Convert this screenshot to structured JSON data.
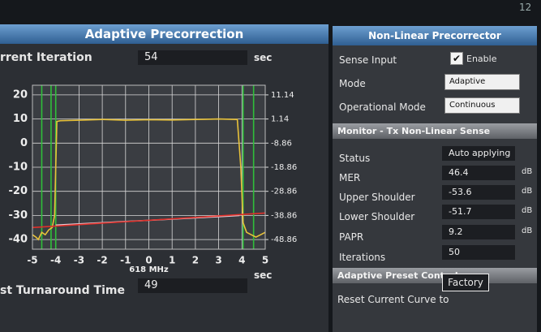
{
  "header": {
    "corner": "12"
  },
  "left_panel": {
    "title": "Adaptive Precorrection",
    "iteration": {
      "label": "rrent Iteration",
      "value": "54",
      "unit": "sec"
    },
    "turnaround": {
      "label": "st Turnaround Time",
      "value": "49",
      "unit": "sec"
    }
  },
  "chart_data": {
    "type": "line",
    "xlabel": "618 MHz",
    "xlim": [
      -5,
      5
    ],
    "xticks": [
      -5,
      -4,
      -3,
      -2,
      -1,
      0,
      1,
      2,
      3,
      4,
      5
    ],
    "ylim": [
      -44,
      24
    ],
    "yticks": [
      20,
      10,
      0,
      -10,
      -20,
      -30,
      -40
    ],
    "y2lim": [
      -52.86,
      15.14
    ],
    "y2ticks": [
      11.14,
      1.14,
      -8.86,
      -18.86,
      -28.86,
      -38.86,
      -48.86
    ],
    "grid": true,
    "series": [
      {
        "color": "#e8c23a",
        "x": [
          -5,
          -4.85,
          -4.75,
          -4.6,
          -4.45,
          -4.3,
          -4.15,
          -4.05,
          -3.95,
          -3.8,
          -3,
          -2,
          -1,
          0,
          1,
          2,
          3,
          3.8,
          3.95,
          4.05,
          4.2,
          4.4,
          4.6,
          4.8,
          5
        ],
        "values": [
          -38,
          -39,
          -40,
          -37,
          -38,
          -36,
          -35,
          -30,
          9,
          9.3,
          9.5,
          9.8,
          9.5,
          9.7,
          9.6,
          9.8,
          10,
          9.8,
          -10,
          -33,
          -37,
          -38,
          -39,
          -38,
          -37
        ]
      },
      {
        "color": "#e9c9d2",
        "x": [
          -4,
          -3,
          -2,
          -1,
          0,
          1,
          2,
          3,
          3.9
        ],
        "values": [
          -34,
          -33.5,
          -33,
          -32.5,
          -32,
          -31.5,
          -31,
          -30.5,
          -30
        ]
      },
      {
        "color": "#e0302a",
        "x": [
          -5,
          5
        ],
        "values": [
          -35,
          -29
        ]
      }
    ],
    "vlines": {
      "color": "#2fbf3a",
      "x": [
        -4.6,
        -4.2,
        -4,
        4.05,
        4.5
      ]
    }
  },
  "right_panel": {
    "title": "Non-Linear Precorrector",
    "settings": [
      {
        "label": "Sense Input",
        "value": "Enable"
      },
      {
        "label": "Mode",
        "value": "Adaptive"
      },
      {
        "label": "Operational Mode",
        "value": "Continuous"
      }
    ],
    "monitor": {
      "title": "Monitor - Tx Non-Linear Sense",
      "rows": [
        {
          "label": "Status",
          "value": "Auto applying"
        },
        {
          "label": "MER",
          "value": "46.4",
          "unit": "dB"
        },
        {
          "label": "Upper Shoulder",
          "value": "-53.6",
          "unit": "dB"
        },
        {
          "label": "Lower Shoulder",
          "value": "-51.7",
          "unit": "dB"
        },
        {
          "label": "PAPR",
          "value": "9.2",
          "unit": "dB"
        },
        {
          "label": "Iterations",
          "value": "50"
        }
      ]
    },
    "preset": {
      "title": "Adaptive Preset Control",
      "label": "Reset Current Curve to",
      "button": "Factory"
    }
  }
}
